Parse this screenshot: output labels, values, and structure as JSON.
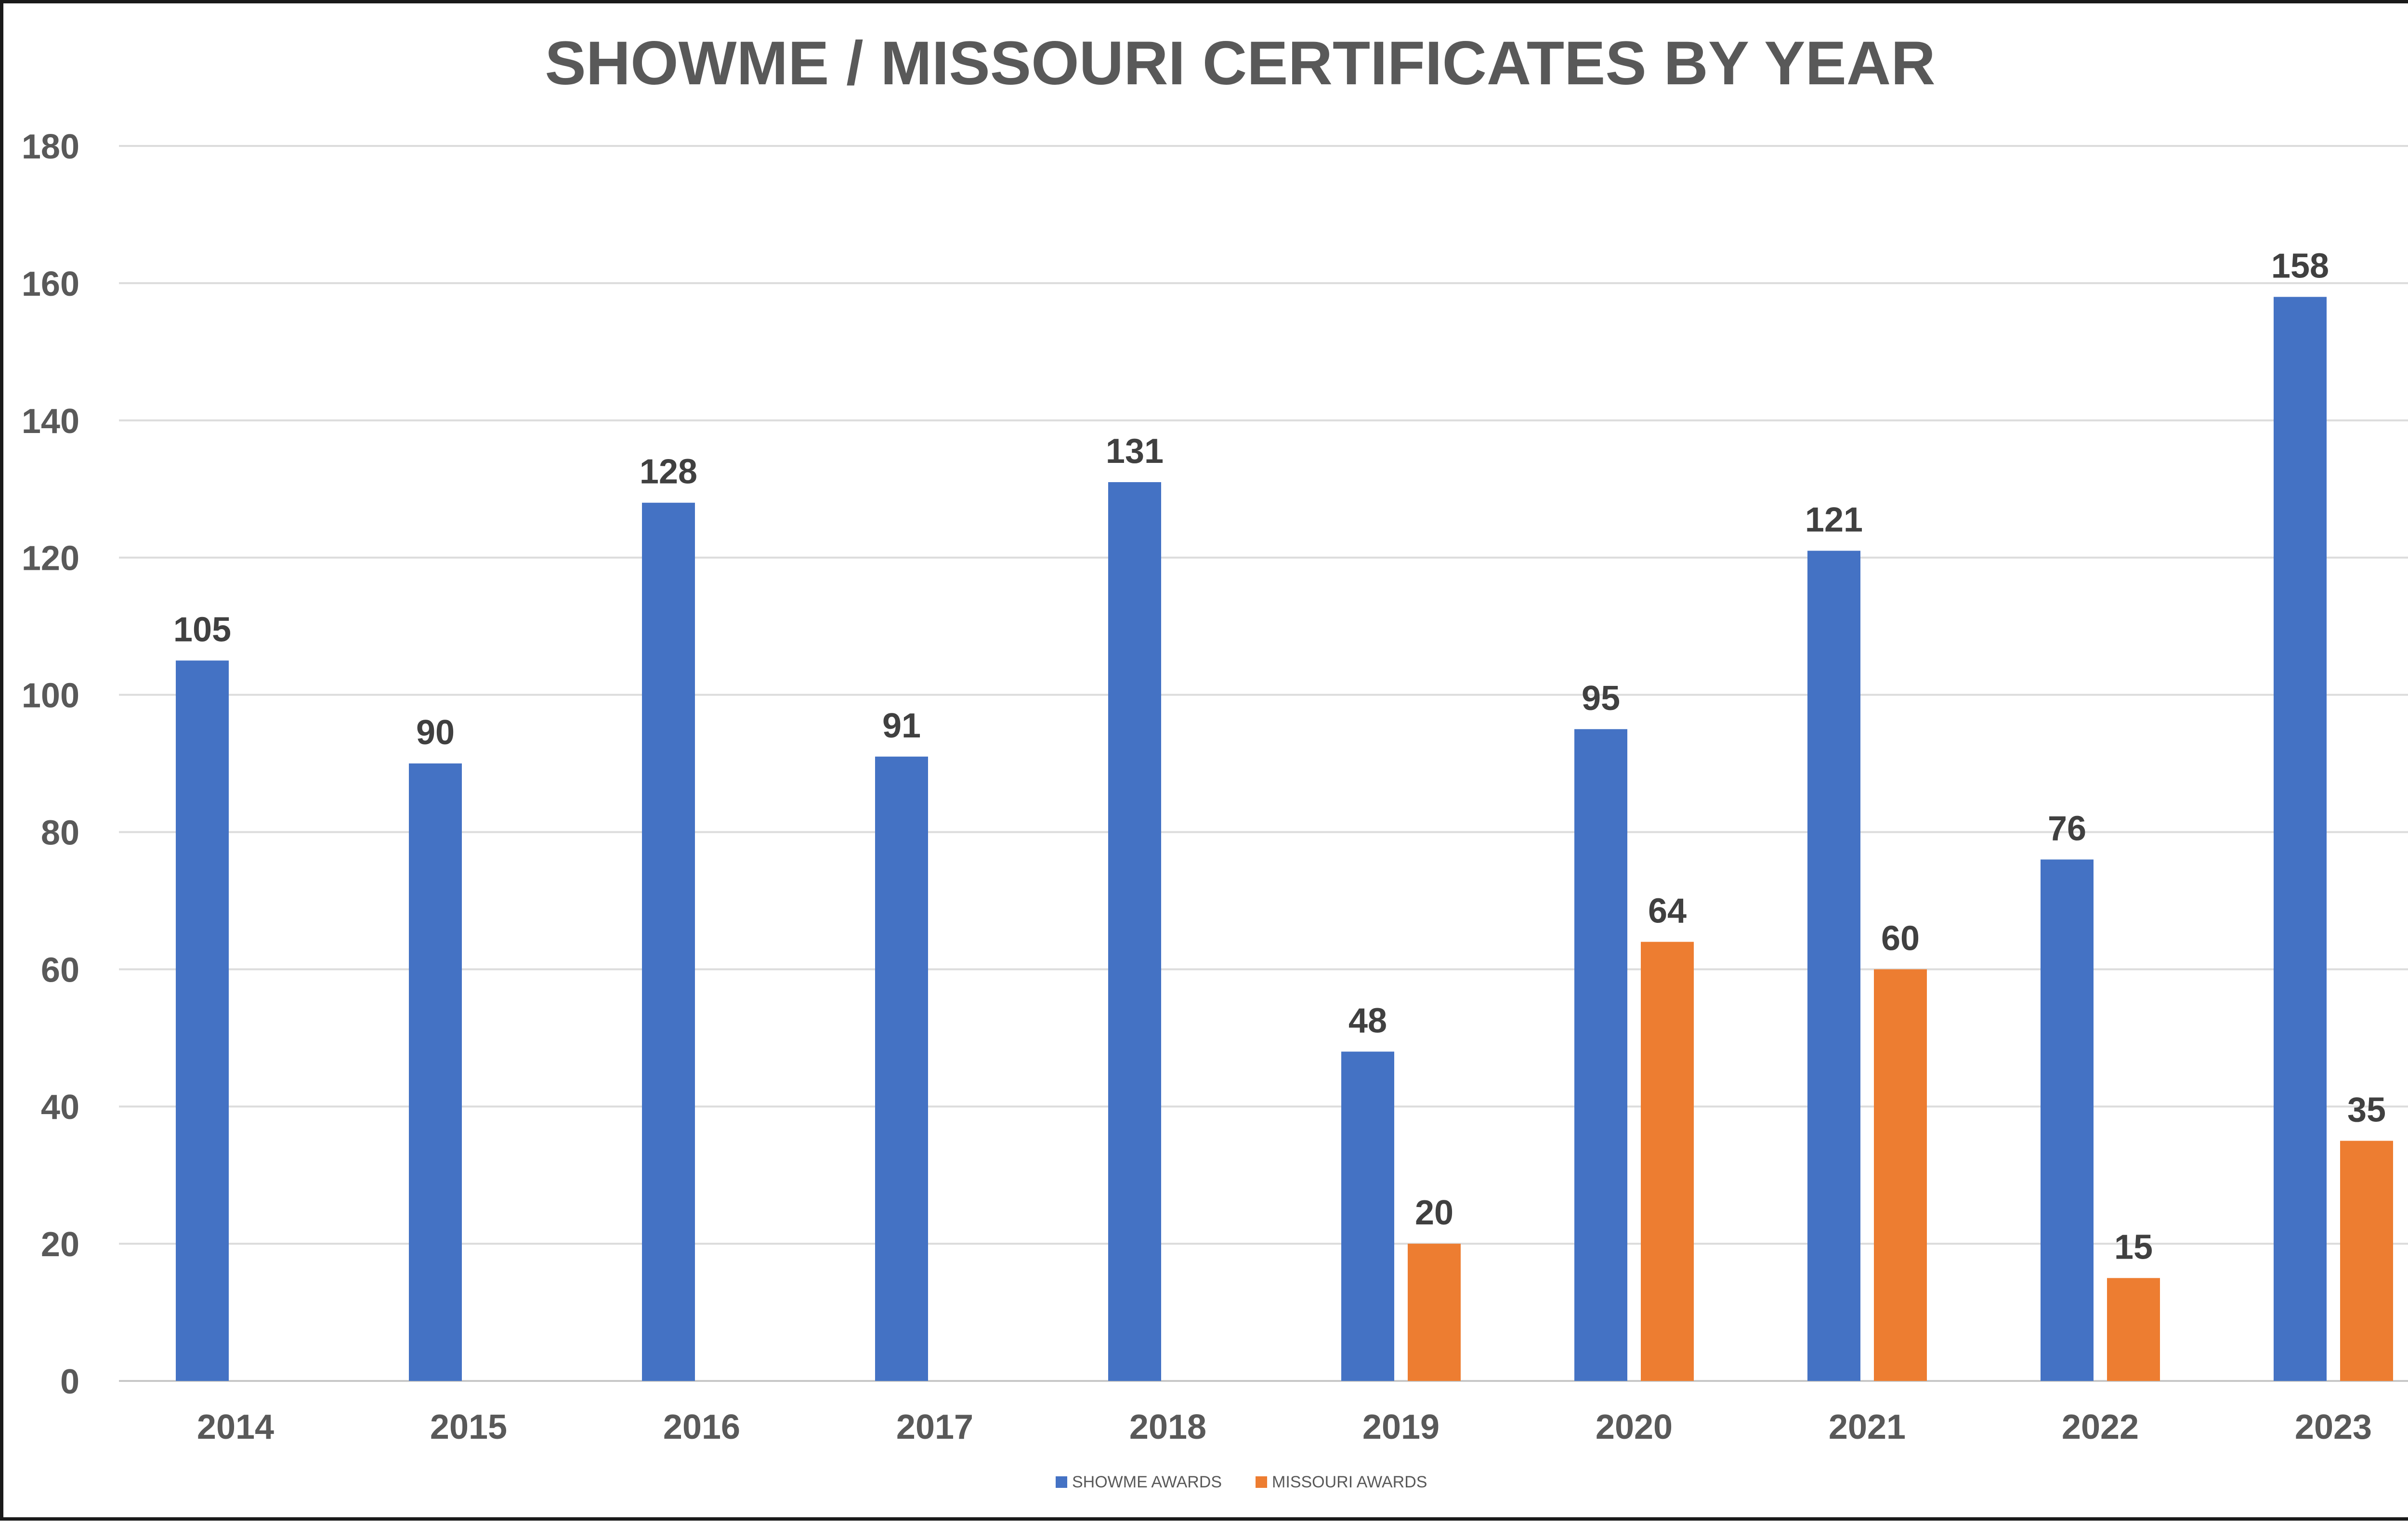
{
  "chart_data": {
    "type": "bar",
    "title": "SHOWME / MISSOURI CERTIFICATES BY YEAR",
    "xlabel": "",
    "ylabel": "",
    "categories": [
      "2014",
      "2015",
      "2016",
      "2017",
      "2018",
      "2019",
      "2020",
      "2021",
      "2022",
      "2023"
    ],
    "series": [
      {
        "name": "SHOWME AWARDS",
        "color": "#4472C4",
        "values": [
          105,
          90,
          128,
          91,
          131,
          48,
          95,
          121,
          76,
          158
        ]
      },
      {
        "name": "MISSOURI AWARDS",
        "color": "#ED7D31",
        "values": [
          null,
          null,
          null,
          null,
          null,
          20,
          64,
          60,
          15,
          35
        ]
      }
    ],
    "ylim": [
      0,
      180
    ],
    "yticks": [
      0,
      20,
      40,
      60,
      80,
      100,
      120,
      140,
      160,
      180
    ],
    "grid": true,
    "legend_position": "bottom",
    "data_labels": true
  }
}
